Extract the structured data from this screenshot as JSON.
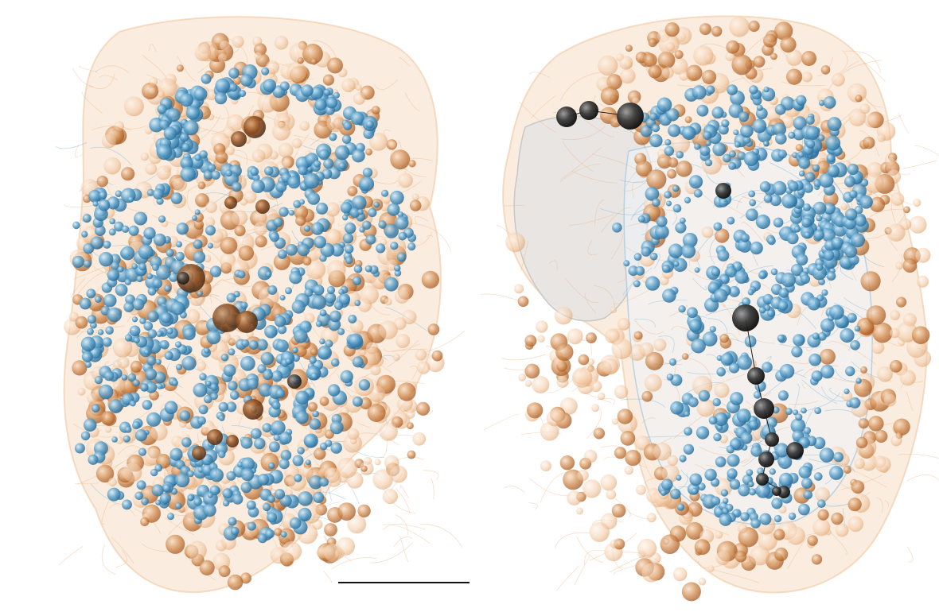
{
  "figure": {
    "panels": [
      {
        "name": "left-panel",
        "view": "dorsal"
      },
      {
        "name": "right-panel",
        "view": "lateral"
      }
    ],
    "colors": {
      "orange_cell": "#c8783a",
      "orange_light": "#f2c9a4",
      "blue_cell": "#5a9cc6",
      "dark_cell": "#2a2a2a",
      "outline_grey": "#d8d8d8"
    },
    "scale_bar": {
      "label": ""
    }
  }
}
